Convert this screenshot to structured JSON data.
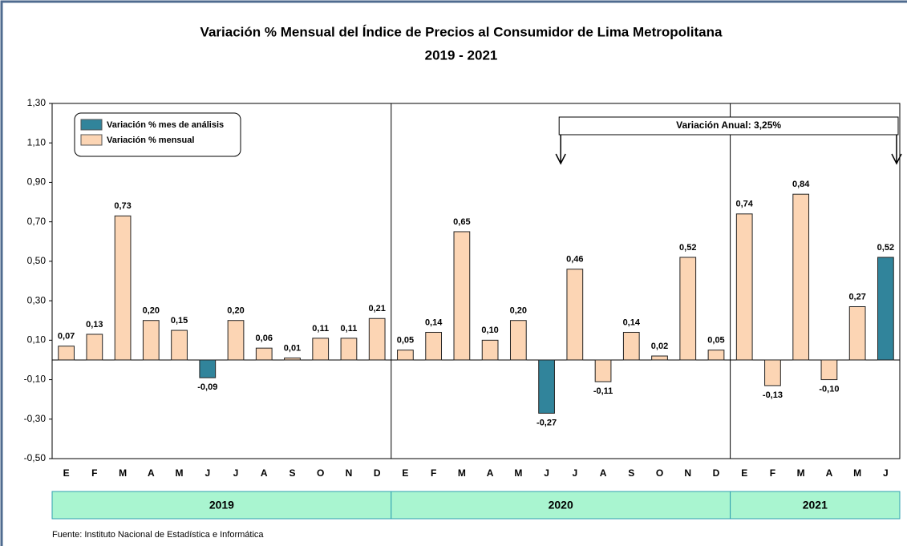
{
  "chart_data": {
    "type": "bar",
    "title": "Variación % Mensual del Índice de Precios al Consumidor de Lima Metropolitana",
    "subtitle": "2019 - 2021",
    "categories": [
      "E",
      "F",
      "M",
      "A",
      "M",
      "J",
      "J",
      "A",
      "S",
      "O",
      "N",
      "D",
      "E",
      "F",
      "M",
      "A",
      "M",
      "J",
      "J",
      "A",
      "S",
      "O",
      "N",
      "D",
      "E",
      "F",
      "M",
      "A",
      "M",
      "J"
    ],
    "years": [
      "2019",
      "2020",
      "2021"
    ],
    "year_spans": [
      12,
      12,
      6
    ],
    "series": [
      {
        "name": "Variación % mes de análisis",
        "color": "#31849b",
        "values": [
          null,
          null,
          null,
          null,
          null,
          -0.09,
          null,
          null,
          null,
          null,
          null,
          null,
          null,
          null,
          null,
          null,
          null,
          -0.27,
          null,
          null,
          null,
          null,
          null,
          null,
          null,
          null,
          null,
          null,
          null,
          0.52
        ],
        "value_labels": [
          null,
          null,
          null,
          null,
          null,
          "-0,09",
          null,
          null,
          null,
          null,
          null,
          null,
          null,
          null,
          null,
          null,
          null,
          "-0,27",
          null,
          null,
          null,
          null,
          null,
          null,
          null,
          null,
          null,
          null,
          null,
          "0,52"
        ]
      },
      {
        "name": "Variación % mensual",
        "color": "#fcd5b4",
        "values": [
          0.07,
          0.13,
          0.73,
          0.2,
          0.15,
          null,
          0.2,
          0.06,
          0.01,
          0.11,
          0.11,
          0.21,
          0.05,
          0.14,
          0.65,
          0.1,
          0.2,
          null,
          0.46,
          -0.11,
          0.14,
          0.02,
          0.52,
          0.05,
          0.74,
          -0.13,
          0.84,
          -0.1,
          0.27,
          null
        ],
        "value_labels": [
          "0,07",
          "0,13",
          "0,73",
          "0,20",
          "0,15",
          null,
          "0,20",
          "0,06",
          "0,01",
          "0,11",
          "0,11",
          "0,21",
          "0,05",
          "0,14",
          "0,65",
          "0,10",
          "0,20",
          null,
          "0,46",
          "-0,11",
          "0,14",
          "0,02",
          "0,52",
          "0,05",
          "0,74",
          "-0,13",
          "0,84",
          "-0,10",
          "0,27",
          null
        ]
      }
    ],
    "ylim": [
      -0.5,
      1.3
    ],
    "yticks": [
      {
        "value": -0.5,
        "label": "-0,50"
      },
      {
        "value": -0.3,
        "label": "-0,30"
      },
      {
        "value": -0.1,
        "label": "-0,10"
      },
      {
        "value": 0.1,
        "label": "0,10"
      },
      {
        "value": 0.3,
        "label": "0,30"
      },
      {
        "value": 0.5,
        "label": "0,50"
      },
      {
        "value": 0.7,
        "label": "0,70"
      },
      {
        "value": 0.9,
        "label": "0,90"
      },
      {
        "value": 1.1,
        "label": "1,10"
      },
      {
        "value": 1.3,
        "label": "1,30"
      }
    ],
    "legend": "upper left",
    "annotation": {
      "text": "Variación Anual: 3,25%",
      "from": 17,
      "to": 29
    },
    "source": "Fuente: Instituto  Nacional de Estadística  e Informática"
  }
}
